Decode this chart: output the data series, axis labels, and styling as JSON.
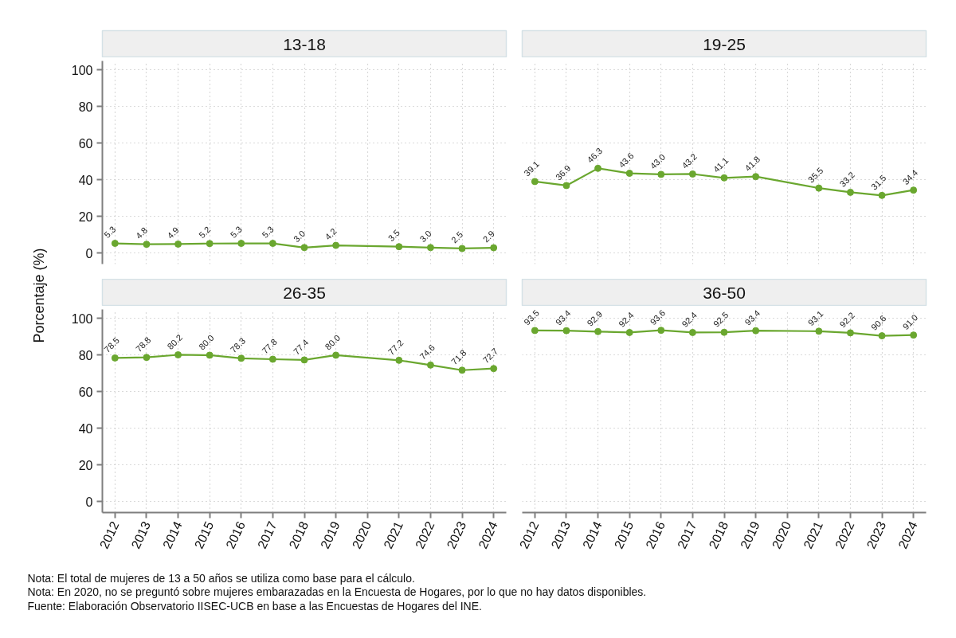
{
  "chart_data": [
    {
      "type": "line",
      "title": "13-18",
      "ylabel": "Porcentaje (%)",
      "annotations": [
        "Nota: El total de mujeres de 13 a 50 años se utiliza como base para el cálculo.",
        "Nota: En 2020, no se preguntó sobre mujeres embarazadas en la Encuesta de Hogares, por lo que no hay datos disponibles.",
        "Fuente: Elaboración Observatorio IISEC-UCB en base a las Encuestas de Hogares del INE."
      ],
      "x": [
        2012,
        2013,
        2014,
        2015,
        2016,
        2017,
        2018,
        2019,
        2021,
        2022,
        2023,
        2024
      ],
      "series": [
        {
          "color": "#6aa72f",
          "values": [
            5.3,
            4.8,
            4.9,
            5.2,
            5.3,
            5.3,
            3.0,
            4.2,
            3.5,
            3.0,
            2.5,
            2.9
          ],
          "value_labels": [
            "5.3",
            "4.8",
            "4.9",
            "5.2",
            "5.3",
            "5.3",
            "3.0",
            "4.2",
            "3.5",
            "3.0",
            "2.5",
            "2.9"
          ]
        }
      ],
      "xlim": [
        2011.6,
        2024.4
      ],
      "xticks": [
        2012,
        2013,
        2014,
        2015,
        2016,
        2017,
        2018,
        2019,
        2020,
        2021,
        2022,
        2023,
        2024
      ],
      "ylim": [
        -6,
        105
      ],
      "yticks": [
        0,
        20,
        40,
        60,
        80,
        100
      ],
      "tick_labels": "y",
      "grid": true,
      "marker": "circle"
    },
    {
      "type": "line",
      "title": "19-25",
      "x": [
        2012,
        2013,
        2014,
        2015,
        2016,
        2017,
        2018,
        2019,
        2021,
        2022,
        2023,
        2024
      ],
      "series": [
        {
          "color": "#6aa72f",
          "values": [
            39.1,
            36.9,
            46.3,
            43.6,
            43.0,
            43.2,
            41.1,
            41.8,
            35.5,
            33.2,
            31.5,
            34.4
          ],
          "value_labels": [
            "39.1",
            "36.9",
            "46.3",
            "43.6",
            "43.0",
            "43.2",
            "41.1",
            "41.8",
            "35.5",
            "33.2",
            "31.5",
            "34.4"
          ]
        }
      ],
      "xlim": [
        2011.6,
        2024.4
      ],
      "xticks": [
        2012,
        2013,
        2014,
        2015,
        2016,
        2017,
        2018,
        2019,
        2020,
        2021,
        2022,
        2023,
        2024
      ],
      "ylim": [
        -6,
        105
      ],
      "yticks": [
        0,
        20,
        40,
        60,
        80,
        100
      ],
      "tick_labels": false,
      "grid": true,
      "marker": "circle"
    },
    {
      "type": "line",
      "title": "26-35",
      "x": [
        2012,
        2013,
        2014,
        2015,
        2016,
        2017,
        2018,
        2019,
        2021,
        2022,
        2023,
        2024
      ],
      "series": [
        {
          "color": "#6aa72f",
          "values": [
            78.5,
            78.8,
            80.2,
            80.0,
            78.3,
            77.8,
            77.4,
            80.0,
            77.2,
            74.6,
            71.8,
            72.7
          ],
          "value_labels": [
            "78.5",
            "78.8",
            "80.2",
            "80.0",
            "78.3",
            "77.8",
            "77.4",
            "80.0",
            "77.2",
            "74.6",
            "71.8",
            "72.7"
          ]
        }
      ],
      "xlim": [
        2011.6,
        2024.4
      ],
      "xticks": [
        2012,
        2013,
        2014,
        2015,
        2016,
        2017,
        2018,
        2019,
        2020,
        2021,
        2022,
        2023,
        2024
      ],
      "ylim": [
        -6,
        105
      ],
      "yticks": [
        0,
        20,
        40,
        60,
        80,
        100
      ],
      "grid": true,
      "marker": "circle"
    },
    {
      "type": "line",
      "title": "36-50",
      "x": [
        2012,
        2013,
        2014,
        2015,
        2016,
        2017,
        2018,
        2019,
        2021,
        2022,
        2023,
        2024
      ],
      "series": [
        {
          "color": "#6aa72f",
          "values": [
            93.5,
            93.4,
            92.9,
            92.4,
            93.6,
            92.4,
            92.5,
            93.4,
            93.1,
            92.2,
            90.6,
            91.0
          ],
          "value_labels": [
            "93.5",
            "93.4",
            "92.9",
            "92.4",
            "93.6",
            "92.4",
            "92.5",
            "93.4",
            "93.1",
            "92.2",
            "90.6",
            "91.0"
          ]
        }
      ],
      "xlim": [
        2011.6,
        2024.4
      ],
      "xticks": [
        2012,
        2013,
        2014,
        2015,
        2016,
        2017,
        2018,
        2019,
        2020,
        2021,
        2022,
        2023,
        2024
      ],
      "ylim": [
        -6,
        105
      ],
      "yticks": [
        0,
        20,
        40,
        60,
        80,
        100
      ],
      "tick_labels": "x",
      "grid": true,
      "marker": "circle"
    }
  ]
}
